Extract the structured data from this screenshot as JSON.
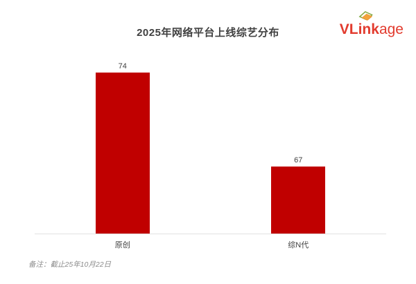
{
  "logo": {
    "text_bold": "VLink",
    "text_light": "age"
  },
  "chart_data": {
    "type": "bar",
    "title": "2025年网络平台上线综艺分布",
    "categories": [
      "原创",
      "综N代"
    ],
    "values": [
      74,
      67
    ],
    "xlabel": "",
    "ylabel": "",
    "ylim": [
      62,
      76
    ],
    "gridlines": false,
    "legend": "none",
    "value_labels": true,
    "bar_color": "#C00000"
  },
  "footnote": "备注：截止25年10月22日",
  "colors": {
    "bar": "#C00000",
    "logo_red": "#E23B2E",
    "axis_line": "#E2E2E2",
    "text": "#404040",
    "footnote_gray": "#8C8C8C"
  }
}
